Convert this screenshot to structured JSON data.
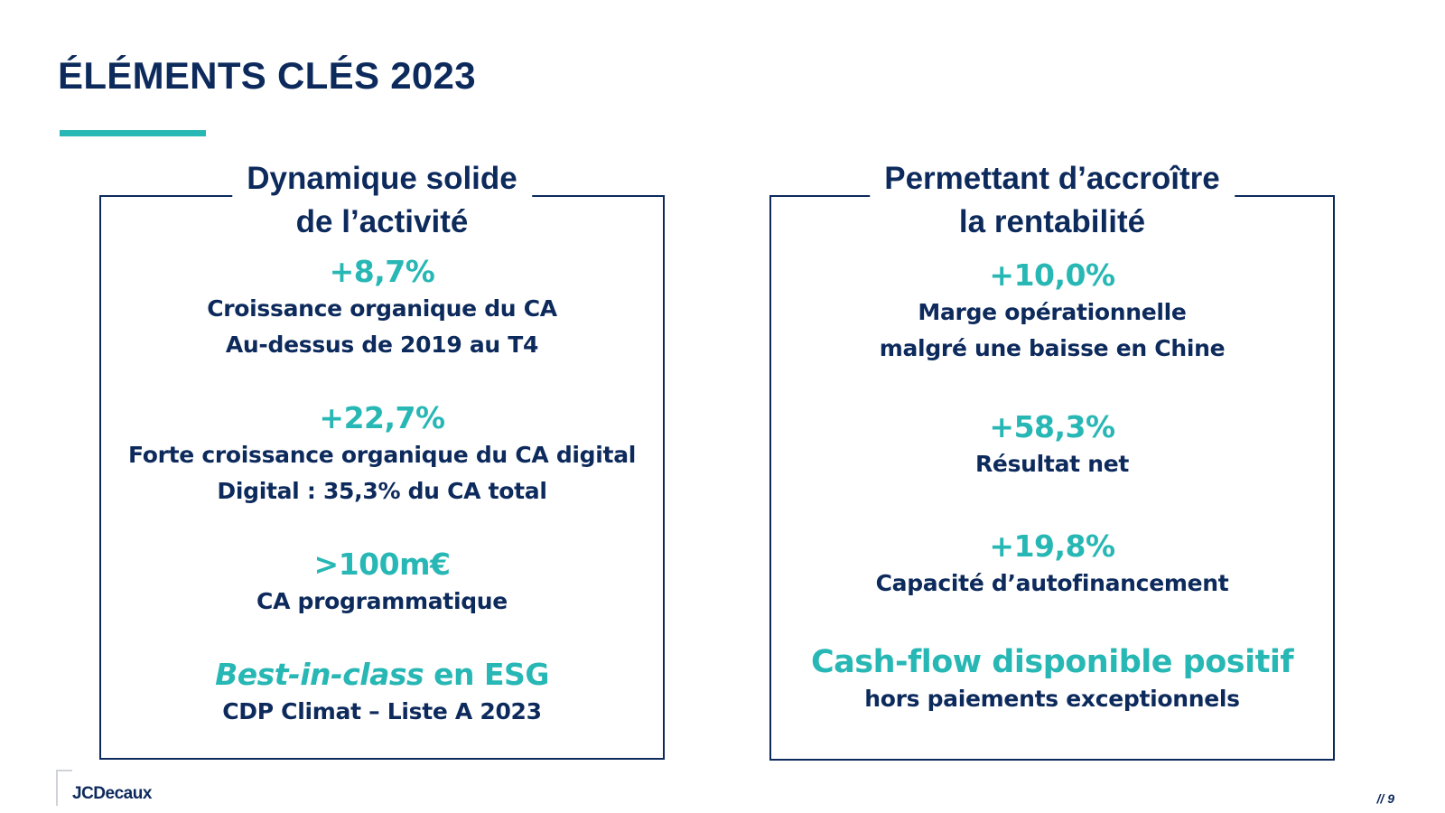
{
  "slide": {
    "title": "ÉLÉMENTS CLÉS 2023",
    "page_number": "// 9",
    "logo_text": "JCDecaux"
  },
  "left_panel": {
    "heading": [
      "Dynamique solide",
      "de l’activité"
    ],
    "metrics": [
      {
        "value": "+8,7%",
        "lines": [
          "Croissance organique du CA",
          "Au-dessus de 2019 au T4"
        ]
      },
      {
        "value": "+22,7%",
        "lines": [
          "Forte croissance organique du CA digital",
          "Digital : 35,3% du CA total"
        ]
      },
      {
        "value": ">100m€",
        "lines": [
          "CA programmatique"
        ]
      },
      {
        "value_italic": "Best-in-class",
        "value_rest": " en ESG",
        "lines": [
          "CDP Climat – Liste A 2023"
        ]
      }
    ]
  },
  "right_panel": {
    "heading": [
      "Permettant d’accroître",
      "la rentabilité"
    ],
    "metrics": [
      {
        "value": "+10,0%",
        "lines": [
          "Marge opérationnelle",
          "malgré une baisse en Chine"
        ]
      },
      {
        "value": "+58,3%",
        "lines": [
          "Résultat net"
        ]
      },
      {
        "value": "+19,8%",
        "lines": [
          "Capacité d’autofinancement"
        ]
      },
      {
        "value": "Cash-flow disponible positif",
        "lines": [
          "hors paiements exceptionnels"
        ]
      }
    ]
  },
  "colors": {
    "navy": "#0d2a5c",
    "teal": "#27b7b4"
  }
}
